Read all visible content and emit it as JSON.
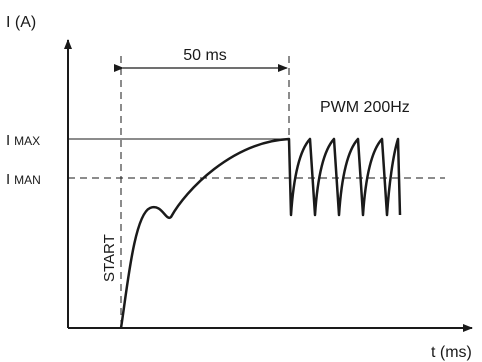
{
  "axes": {
    "y_label": "I (A)",
    "x_label": "t (ms)"
  },
  "levels": {
    "max": {
      "main": "I",
      "sub": "MAX"
    },
    "man": {
      "main": "I",
      "sub": "MAN"
    }
  },
  "annotations": {
    "interval": "50 ms",
    "pwm": "PWM 200Hz",
    "start": "START"
  },
  "colors": {
    "ink": "#1a1a1a",
    "background": "#ffffff"
  }
}
